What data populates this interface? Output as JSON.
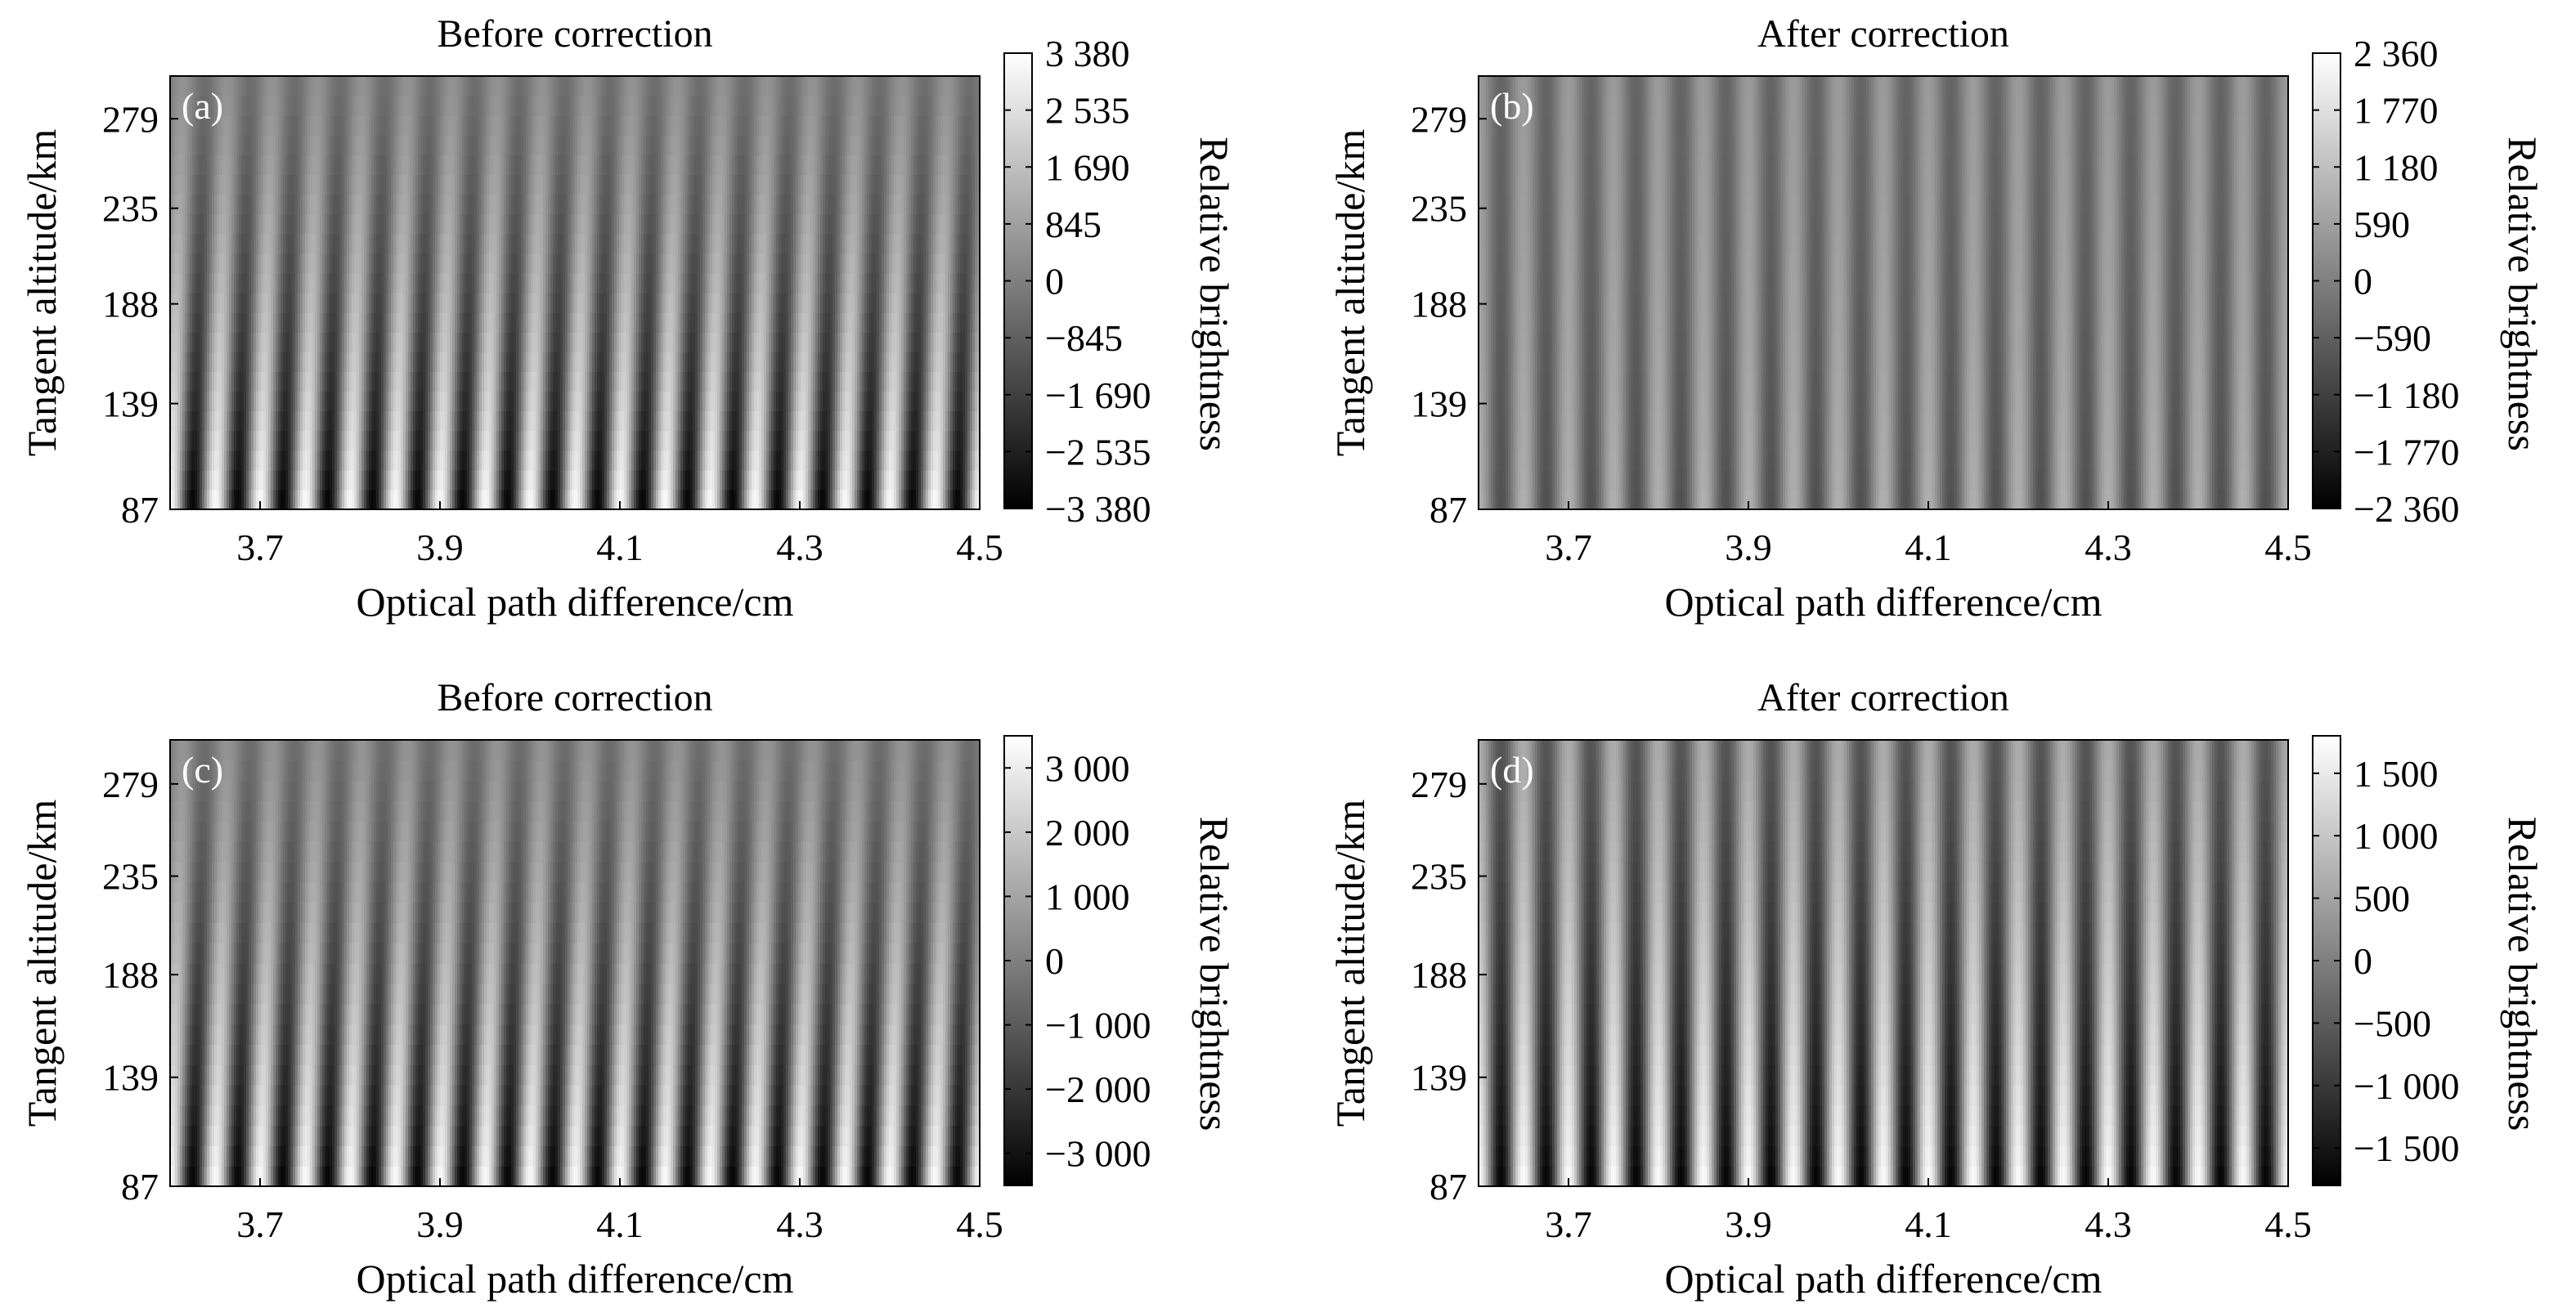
{
  "chart_data": [
    {
      "type": "heatmap",
      "panel_label": "(a)",
      "title": "Before correction",
      "xlabel": "Optical path difference/cm",
      "ylabel": "Tangent altitude/km",
      "colorbar_label": "Relative brightness",
      "xlim": [
        3.6,
        4.5
      ],
      "ylim": [
        87,
        300
      ],
      "x_ticks": [
        "3.7",
        "3.9",
        "4.1",
        "4.3",
        "4.5"
      ],
      "x_tick_values": [
        3.7,
        3.9,
        4.1,
        4.3,
        4.5
      ],
      "y_ticks": [
        "87",
        "139",
        "188",
        "235",
        "279"
      ],
      "y_tick_values": [
        87,
        139,
        188,
        235,
        279
      ],
      "colorbar_ticks": [
        "3 380",
        "2 535",
        "1 690",
        "845",
        "0",
        "−845",
        "−1 690",
        "−2 535",
        "−3 380"
      ],
      "colorbar_tick_values": [
        3380,
        2535,
        1690,
        845,
        0,
        -845,
        -1690,
        -2535,
        -3380
      ],
      "clim": [
        -3380,
        3380
      ],
      "colormap": "gray",
      "fringe_count": 18,
      "amplitude_bottom": 3380,
      "amplitude_top": 450,
      "fringe_tilt_cm": 0.014
    },
    {
      "type": "heatmap",
      "panel_label": "(b)",
      "title": "After correction",
      "xlabel": "Optical path difference/cm",
      "ylabel": "Tangent altitude/km",
      "colorbar_label": "Relative brightness",
      "xlim": [
        3.6,
        4.5
      ],
      "ylim": [
        87,
        300
      ],
      "x_ticks": [
        "3.7",
        "3.9",
        "4.1",
        "4.3",
        "4.5"
      ],
      "x_tick_values": [
        3.7,
        3.9,
        4.1,
        4.3,
        4.5
      ],
      "y_ticks": [
        "87",
        "139",
        "188",
        "235",
        "279"
      ],
      "y_tick_values": [
        87,
        139,
        188,
        235,
        279
      ],
      "colorbar_ticks": [
        "2 360",
        "1 770",
        "1 180",
        "590",
        "0",
        "−590",
        "−1 180",
        "−1 770",
        "−2 360"
      ],
      "colorbar_tick_values": [
        2360,
        1770,
        1180,
        590,
        0,
        -590,
        -1180,
        -1770,
        -2360
      ],
      "clim": [
        -2360,
        2360
      ],
      "colormap": "gray",
      "fringe_count": 18,
      "amplitude_bottom": 900,
      "amplitude_top": 500,
      "fringe_tilt_cm": 0.0
    },
    {
      "type": "heatmap",
      "panel_label": "(c)",
      "title": "Before correction",
      "xlabel": "Optical path difference/cm",
      "ylabel": "Tangent altitude/km",
      "colorbar_label": "Relative brightness",
      "xlim": [
        3.6,
        4.5
      ],
      "ylim": [
        87,
        300
      ],
      "x_ticks": [
        "3.7",
        "3.9",
        "4.1",
        "4.3",
        "4.5"
      ],
      "x_tick_values": [
        3.7,
        3.9,
        4.1,
        4.3,
        4.5
      ],
      "y_ticks": [
        "87",
        "139",
        "188",
        "235",
        "279"
      ],
      "y_tick_values": [
        87,
        139,
        188,
        235,
        279
      ],
      "colorbar_ticks": [
        "3 000",
        "2 000",
        "1 000",
        "0",
        "−1 000",
        "−2 000",
        "−3 000"
      ],
      "colorbar_tick_values": [
        3000,
        2000,
        1000,
        0,
        -1000,
        -2000,
        -3000
      ],
      "clim": [
        -3500,
        3500
      ],
      "colormap": "gray",
      "fringe_count": 18,
      "amplitude_bottom": 3500,
      "amplitude_top": 500,
      "fringe_tilt_cm": 0.014
    },
    {
      "type": "heatmap",
      "panel_label": "(d)",
      "title": "After correction",
      "xlabel": "Optical path difference/cm",
      "ylabel": "Tangent altitude/km",
      "colorbar_label": "Relative brightness",
      "xlim": [
        3.6,
        4.5
      ],
      "ylim": [
        87,
        300
      ],
      "x_ticks": [
        "3.7",
        "3.9",
        "4.1",
        "4.3",
        "4.5"
      ],
      "x_tick_values": [
        3.7,
        3.9,
        4.1,
        4.3,
        4.5
      ],
      "y_ticks": [
        "87",
        "139",
        "188",
        "235",
        "279"
      ],
      "y_tick_values": [
        87,
        139,
        188,
        235,
        279
      ],
      "colorbar_ticks": [
        "1 500",
        "1 000",
        "500",
        "0",
        "−500",
        "−1 000",
        "−1 500"
      ],
      "colorbar_tick_values": [
        1500,
        1000,
        500,
        0,
        -500,
        -1000,
        -1500
      ],
      "clim": [
        -1800,
        1800
      ],
      "colormap": "gray",
      "fringe_count": 18,
      "amplitude_bottom": 1800,
      "amplitude_top": 600,
      "fringe_tilt_cm": 0.0
    }
  ]
}
